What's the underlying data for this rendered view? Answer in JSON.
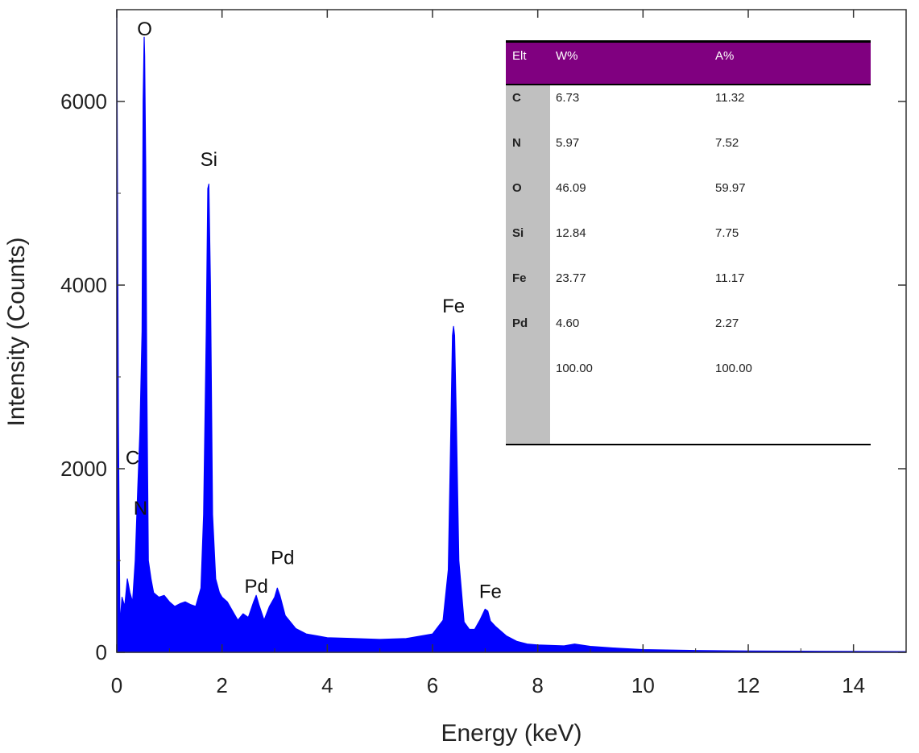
{
  "chart_data": {
    "type": "line",
    "xlabel": "Energy (keV)",
    "ylabel": "Intensity (Counts)",
    "xlim": [
      0,
      15
    ],
    "ylim": [
      0,
      7000
    ],
    "x_ticks": [
      0,
      2,
      4,
      6,
      8,
      10,
      12,
      14
    ],
    "y_ticks": [
      0,
      2000,
      4000,
      6000
    ],
    "fill_color": "#0000ff",
    "series": [
      {
        "name": "EDS spectrum",
        "x": [
          0.0,
          0.03,
          0.06,
          0.1,
          0.15,
          0.2,
          0.25,
          0.3,
          0.35,
          0.4,
          0.44,
          0.48,
          0.5,
          0.52,
          0.53,
          0.55,
          0.57,
          0.6,
          0.65,
          0.7,
          0.8,
          0.9,
          1.0,
          1.1,
          1.2,
          1.3,
          1.4,
          1.5,
          1.6,
          1.65,
          1.7,
          1.73,
          1.75,
          1.78,
          1.82,
          1.88,
          1.95,
          2.0,
          2.1,
          2.2,
          2.3,
          2.4,
          2.5,
          2.6,
          2.65,
          2.7,
          2.8,
          2.9,
          3.0,
          3.05,
          3.1,
          3.2,
          3.3,
          3.4,
          3.6,
          3.8,
          4.0,
          4.5,
          5.0,
          5.5,
          6.0,
          6.2,
          6.3,
          6.35,
          6.38,
          6.4,
          6.42,
          6.45,
          6.5,
          6.6,
          6.7,
          6.8,
          6.9,
          7.0,
          7.05,
          7.1,
          7.2,
          7.4,
          7.6,
          7.8,
          8.0,
          8.5,
          8.7,
          9.0,
          9.5,
          10.0,
          11.0,
          12.0,
          13.0,
          14.0,
          15.0
        ],
        "y": [
          7000,
          2500,
          300,
          600,
          500,
          800,
          650,
          550,
          1000,
          1800,
          2400,
          3500,
          6000,
          6700,
          6500,
          5300,
          3000,
          1000,
          800,
          650,
          600,
          620,
          550,
          500,
          530,
          550,
          520,
          500,
          700,
          1500,
          3500,
          5050,
          5100,
          4000,
          1500,
          800,
          650,
          600,
          550,
          450,
          350,
          420,
          380,
          550,
          620,
          520,
          350,
          500,
          600,
          700,
          620,
          400,
          330,
          260,
          200,
          180,
          160,
          150,
          140,
          150,
          200,
          350,
          900,
          2500,
          3450,
          3550,
          3450,
          2600,
          1000,
          330,
          250,
          250,
          350,
          470,
          450,
          340,
          280,
          180,
          120,
          90,
          80,
          70,
          90,
          65,
          45,
          30,
          20,
          15,
          12,
          10,
          8
        ]
      }
    ],
    "peak_labels": [
      {
        "text": "O",
        "x": 0.53,
        "y": 6720
      },
      {
        "text": "C",
        "x": 0.3,
        "y": 2050
      },
      {
        "text": "N",
        "x": 0.45,
        "y": 1500
      },
      {
        "text": "Si",
        "x": 1.75,
        "y": 5300
      },
      {
        "text": "Pd",
        "x": 2.65,
        "y": 650
      },
      {
        "text": "Pd",
        "x": 3.15,
        "y": 960
      },
      {
        "text": "Fe",
        "x": 6.4,
        "y": 3700
      },
      {
        "text": "Fe",
        "x": 7.1,
        "y": 590
      }
    ]
  },
  "table": {
    "headers": [
      "Elt",
      "W%",
      "A%"
    ],
    "rows": [
      {
        "elt": "C",
        "w": "6.73",
        "a": "11.32"
      },
      {
        "elt": "N",
        "w": "5.97",
        "a": "7.52"
      },
      {
        "elt": "O",
        "w": "46.09",
        "a": "59.97"
      },
      {
        "elt": "Si",
        "w": "12.84",
        "a": "7.75"
      },
      {
        "elt": "Fe",
        "w": "23.77",
        "a": "11.17"
      },
      {
        "elt": "Pd",
        "w": "4.60",
        "a": "2.27"
      },
      {
        "elt": "",
        "w": "100.00",
        "a": "100.00"
      }
    ],
    "header_color": "#800080",
    "sidebar_color": "#c0c0c0"
  }
}
